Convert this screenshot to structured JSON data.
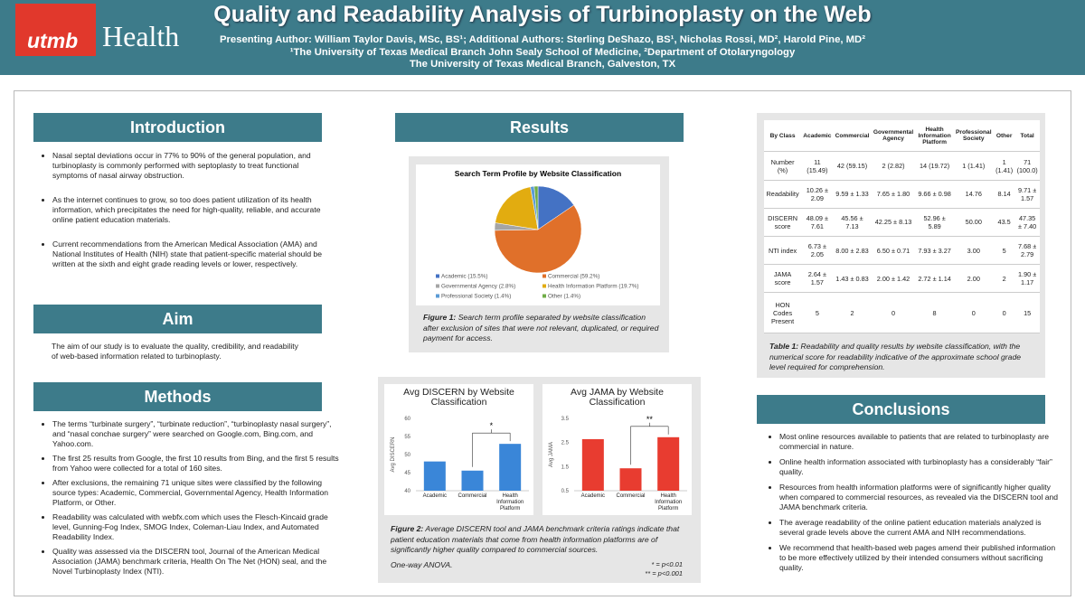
{
  "header": {
    "logo_primary": "utmb",
    "logo_secondary": "Health",
    "title": "Quality and Readability Analysis of Turbinoplasty on the Web",
    "authors": "Presenting Author: William Taylor Davis, MSc, BS¹; Additional Authors: Sterling DeShazo, BS¹, Nicholas Rossi, MD², Harold Pine, MD²",
    "affiliation": "¹The University of Texas Medical Branch John Sealy School of Medicine, ²Department of Otolaryngology",
    "location": "The University of Texas Medical Branch, Galveston, TX"
  },
  "introduction": {
    "heading": "Introduction",
    "bullets": [
      "Nasal septal deviations occur in 77% to 90% of the general population, and turbinoplasty is commonly performed with septoplasty to treat functional symptoms of nasal airway obstruction.",
      "As the internet continues to grow, so too does patient utilization of its health information, which precipitates the need for high-quality, reliable, and accurate online patient education materials.",
      "Current recommendations from the American Medical Association (AMA) and National Institutes of Health (NIH) state that patient-specific material should be written at the sixth and eight grade reading levels or lower, respectively."
    ]
  },
  "aim": {
    "heading": "Aim",
    "text": "The aim of our study is to evaluate the quality, credibility, and readability of web-based information related to turbinoplasty."
  },
  "methods": {
    "heading": "Methods",
    "bullets": [
      "The terms “turbinate surgery”, “turbinate reduction”, “turbinoplasty nasal surgery”, and “nasal conchae surgery” were searched on Google.com, Bing.com, and Yahoo.com.",
      "The first 25 results from Google, the first 10 results from Bing, and the first 5 results from Yahoo were collected for a total of 160 sites.",
      "After exclusions, the remaining 71 unique sites were classified by the following source types: Academic, Commercial, Governmental Agency, Health Information Platform, or Other.",
      "Readability was calculated with webfx.com which uses the Flesch-Kincaid grade level, Gunning-Fog Index, SMOG Index, Coleman-Liau Index, and Automated Readability Index.",
      "Quality was assessed via the DISCERN tool, Journal of the American Medical Association (JAMA) benchmark criteria, Health On The Net (HON) seal, and the Novel Turbinoplasty Index (NTI)."
    ]
  },
  "results": {
    "heading": "Results",
    "figure1_label": "Figure 1:",
    "figure1_text": "Search term profile separated by website classification after exclusion of sites that were not relevant, duplicated, or required payment for access.",
    "figure2_label": "Figure 2:",
    "figure2_text": "Average DISCERN tool and JAMA benchmark criteria ratings indicate that patient education materials that come from health information platforms are of significantly higher quality compared to commercial sources.",
    "figure2_note": "One-way ANOVA.",
    "significance": [
      "* = p<0.01",
      "** = p<0.001"
    ]
  },
  "chart_data": [
    {
      "type": "pie",
      "title": "Search Term Profile by Website Classification",
      "categories": [
        "Academic (15.5%)",
        "Commercial (59.2%)",
        "Governmental Agency (2.8%)",
        "Health Information Platform (19.7%)",
        "Professional Society (1.4%)",
        "Other (1.4%)"
      ],
      "values": [
        15.5,
        59.2,
        2.8,
        19.7,
        1.4,
        1.4
      ],
      "colors": [
        "#4472c4",
        "#e0702a",
        "#a5a5a5",
        "#e2ac10",
        "#5b9bd5",
        "#70ad47"
      ],
      "legend": "bottom"
    },
    {
      "type": "bar",
      "title": "Avg DISCERN by Website Classification",
      "y_label": "Avg DISCERN",
      "categories": [
        "Academic",
        "Commercial",
        "Health Information Platform"
      ],
      "values": [
        48.09,
        45.56,
        52.96
      ],
      "color": "#3a86d8",
      "ylim": [
        40,
        60
      ],
      "yticks": [
        40,
        45,
        50,
        55,
        60
      ],
      "annotation": "*"
    },
    {
      "type": "bar",
      "title": "Avg JAMA by Website Classification",
      "y_label": "Avg JAMA",
      "categories": [
        "Academic",
        "Commercial",
        "Health Information Platform"
      ],
      "values": [
        2.64,
        1.43,
        2.72
      ],
      "color": "#e83c30",
      "ylim": [
        0.5,
        3.5
      ],
      "yticks": [
        0.5,
        1.5,
        2.5,
        3.5
      ],
      "annotation": "**"
    }
  ],
  "table": {
    "header": [
      "By Class",
      "Academic",
      "Commercial",
      "Governmental Agency",
      "Health Information Platform",
      "Professional Society",
      "Other",
      "Total"
    ],
    "rows": [
      [
        "Number (%)",
        "11 (15.49)",
        "42 (59.15)",
        "2 (2.82)",
        "14 (19.72)",
        "1 (1.41)",
        "1 (1.41)",
        "71 (100.0)"
      ],
      [
        "Readability",
        "10.26 ± 2.09",
        "9.59 ± 1.33",
        "7.65 ± 1.80",
        "9.66 ± 0.98",
        "14.76",
        "8.14",
        "9.71 ± 1.57"
      ],
      [
        "DISCERN score",
        "48.09 ± 7.61",
        "45.56 ± 7.13",
        "42.25 ± 8.13",
        "52.96 ± 5.89",
        "50.00",
        "43.5",
        "47.35 ± 7.40"
      ],
      [
        "NTI index",
        "6.73 ± 2.05",
        "8.00 ± 2.83",
        "6.50 ± 0.71",
        "7.93 ± 3.27",
        "3.00",
        "5",
        "7.68 ± 2.79"
      ],
      [
        "JAMA score",
        "2.64 ± 1.57",
        "1.43 ± 0.83",
        "2.00 ± 1.42",
        "2.72 ± 1.14",
        "2.00",
        "2",
        "1.90 ± 1.17"
      ],
      [
        "HON Codes Present",
        "5",
        "2",
        "0",
        "8",
        "0",
        "0",
        "15"
      ]
    ],
    "caption_label": "Table 1:",
    "caption_text": "Readability and quality results by website classification, with the numerical score for readability indicative of the approximate school grade level required for comprehension."
  },
  "conclusions": {
    "heading": "Conclusions",
    "bullets": [
      "Most online resources available to patients that are related to turbinoplasty are commercial in nature.",
      "Online health information associated with turbinoplasty has a considerably “fair” quality.",
      "Resources from health information platforms were of significantly higher quality when compared to commercial resources, as revealed via the DISCERN tool and JAMA benchmark criteria.",
      "The average readability of the online patient education materials analyzed is several grade levels above the current AMA and NIH recommendations.",
      "We recommend that health-based web pages amend their published information to be more effectively utilized by their intended consumers without sacrificing quality."
    ]
  }
}
